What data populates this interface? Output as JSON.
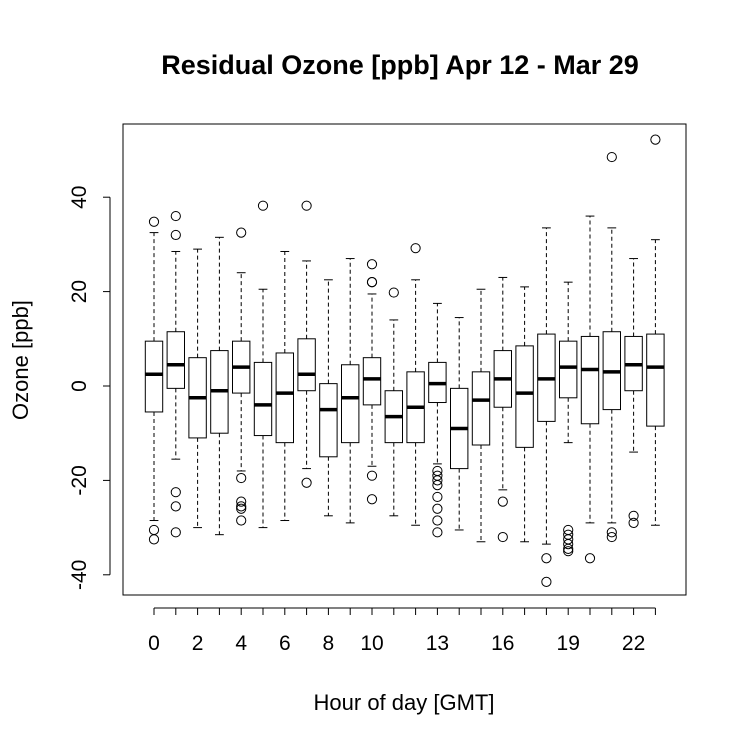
{
  "chart_data": {
    "type": "boxplot",
    "title": "Residual Ozone [ppb] Apr 12 - Mar 29",
    "xlabel": "Hour of day [GMT]",
    "ylabel": "Ozone [ppb]",
    "ylim": [
      -45,
      56
    ],
    "y_ticks": [
      -40,
      -20,
      0,
      20,
      40
    ],
    "x_ticks": [
      0,
      2,
      4,
      6,
      8,
      10,
      13,
      16,
      19,
      22
    ],
    "grid": false,
    "categories": [
      0,
      1,
      2,
      3,
      4,
      5,
      6,
      7,
      8,
      9,
      10,
      11,
      12,
      13,
      14,
      15,
      16,
      17,
      18,
      19,
      20,
      21,
      22,
      23
    ],
    "boxes": [
      {
        "hour": 0,
        "whisker_low": -28.5,
        "q1": -5.5,
        "median": 2.5,
        "q3": 9.5,
        "whisker_high": 32.5,
        "outliers": [
          34.8,
          -30.5,
          -32.5
        ]
      },
      {
        "hour": 1,
        "whisker_low": -15.5,
        "q1": -0.5,
        "median": 4.5,
        "q3": 11.5,
        "whisker_high": 28.5,
        "outliers": [
          36.0,
          32.0,
          -22.5,
          -25.5,
          -31.0
        ]
      },
      {
        "hour": 2,
        "whisker_low": -30.0,
        "q1": -11.0,
        "median": -2.5,
        "q3": 6.0,
        "whisker_high": 29.0,
        "outliers": []
      },
      {
        "hour": 3,
        "whisker_low": -31.5,
        "q1": -10.0,
        "median": -1.0,
        "q3": 7.5,
        "whisker_high": 31.5,
        "outliers": []
      },
      {
        "hour": 4,
        "whisker_low": -18.0,
        "q1": -1.5,
        "median": 4.0,
        "q3": 9.5,
        "whisker_high": 24.0,
        "outliers": [
          32.5,
          -19.5,
          -24.5,
          -25.5,
          -26.0,
          -28.5
        ]
      },
      {
        "hour": 5,
        "whisker_low": -30.0,
        "q1": -10.5,
        "median": -4.0,
        "q3": 5.0,
        "whisker_high": 20.5,
        "outliers": [
          38.2
        ]
      },
      {
        "hour": 6,
        "whisker_low": -28.5,
        "q1": -12.0,
        "median": -1.5,
        "q3": 7.0,
        "whisker_high": 28.5,
        "outliers": []
      },
      {
        "hour": 7,
        "whisker_low": -17.5,
        "q1": -1.0,
        "median": 2.5,
        "q3": 10.0,
        "whisker_high": 26.5,
        "outliers": [
          38.2,
          -20.5
        ]
      },
      {
        "hour": 8,
        "whisker_low": -27.5,
        "q1": -15.0,
        "median": -5.0,
        "q3": 0.5,
        "whisker_high": 22.5,
        "outliers": []
      },
      {
        "hour": 9,
        "whisker_low": -29.0,
        "q1": -12.0,
        "median": -2.5,
        "q3": 4.5,
        "whisker_high": 27.0,
        "outliers": []
      },
      {
        "hour": 10,
        "whisker_low": -17.0,
        "q1": -4.0,
        "median": 1.5,
        "q3": 6.0,
        "whisker_high": 19.5,
        "outliers": [
          25.8,
          22.0,
          22.0,
          -19.0,
          -24.0
        ]
      },
      {
        "hour": 11,
        "whisker_low": -27.5,
        "q1": -12.0,
        "median": -6.5,
        "q3": -1.0,
        "whisker_high": 14.0,
        "outliers": [
          19.8
        ]
      },
      {
        "hour": 12,
        "whisker_low": -29.5,
        "q1": -12.0,
        "median": -4.5,
        "q3": 3.0,
        "whisker_high": 22.5,
        "outliers": [
          29.2
        ]
      },
      {
        "hour": 13,
        "whisker_low": -16.5,
        "q1": -3.5,
        "median": 0.5,
        "q3": 5.0,
        "whisker_high": 17.5,
        "outliers": [
          -18.0,
          -19.0,
          -20.0,
          -21.0,
          -23.5,
          -26.0,
          -28.5,
          -31.0
        ]
      },
      {
        "hour": 14,
        "whisker_low": -30.5,
        "q1": -17.5,
        "median": -9.0,
        "q3": -0.5,
        "whisker_high": 14.5,
        "outliers": []
      },
      {
        "hour": 15,
        "whisker_low": -33.0,
        "q1": -12.5,
        "median": -3.0,
        "q3": 3.0,
        "whisker_high": 20.5,
        "outliers": []
      },
      {
        "hour": 16,
        "whisker_low": -22.0,
        "q1": -4.5,
        "median": 1.5,
        "q3": 7.5,
        "whisker_high": 23.0,
        "outliers": [
          -24.5,
          -32.0
        ]
      },
      {
        "hour": 17,
        "whisker_low": -33.0,
        "q1": -13.0,
        "median": -1.5,
        "q3": 8.5,
        "whisker_high": 21.0,
        "outliers": []
      },
      {
        "hour": 18,
        "whisker_low": -33.5,
        "q1": -7.5,
        "median": 1.5,
        "q3": 11.0,
        "whisker_high": 33.5,
        "outliers": [
          -36.5,
          -41.5
        ]
      },
      {
        "hour": 19,
        "whisker_low": -12.0,
        "q1": -2.5,
        "median": 4.0,
        "q3": 9.5,
        "whisker_high": 22.0,
        "outliers": [
          -30.5,
          -31.5,
          -32.5,
          -33.5,
          -34.5,
          -35.0
        ]
      },
      {
        "hour": 20,
        "whisker_low": -29.0,
        "q1": -8.0,
        "median": 3.5,
        "q3": 10.5,
        "whisker_high": 36.0,
        "outliers": [
          -36.5
        ]
      },
      {
        "hour": 21,
        "whisker_low": -29.0,
        "q1": -5.0,
        "median": 3.0,
        "q3": 11.5,
        "whisker_high": 33.5,
        "outliers": [
          48.5,
          -31.0,
          -32.0
        ]
      },
      {
        "hour": 22,
        "whisker_low": -14.0,
        "q1": -1.0,
        "median": 4.5,
        "q3": 10.5,
        "whisker_high": 27.0,
        "outliers": [
          -27.5,
          -29.0
        ]
      },
      {
        "hour": 23,
        "whisker_low": -29.5,
        "q1": -8.5,
        "median": 4.0,
        "q3": 11.0,
        "whisker_high": 31.0,
        "outliers": [
          52.2
        ]
      }
    ]
  }
}
